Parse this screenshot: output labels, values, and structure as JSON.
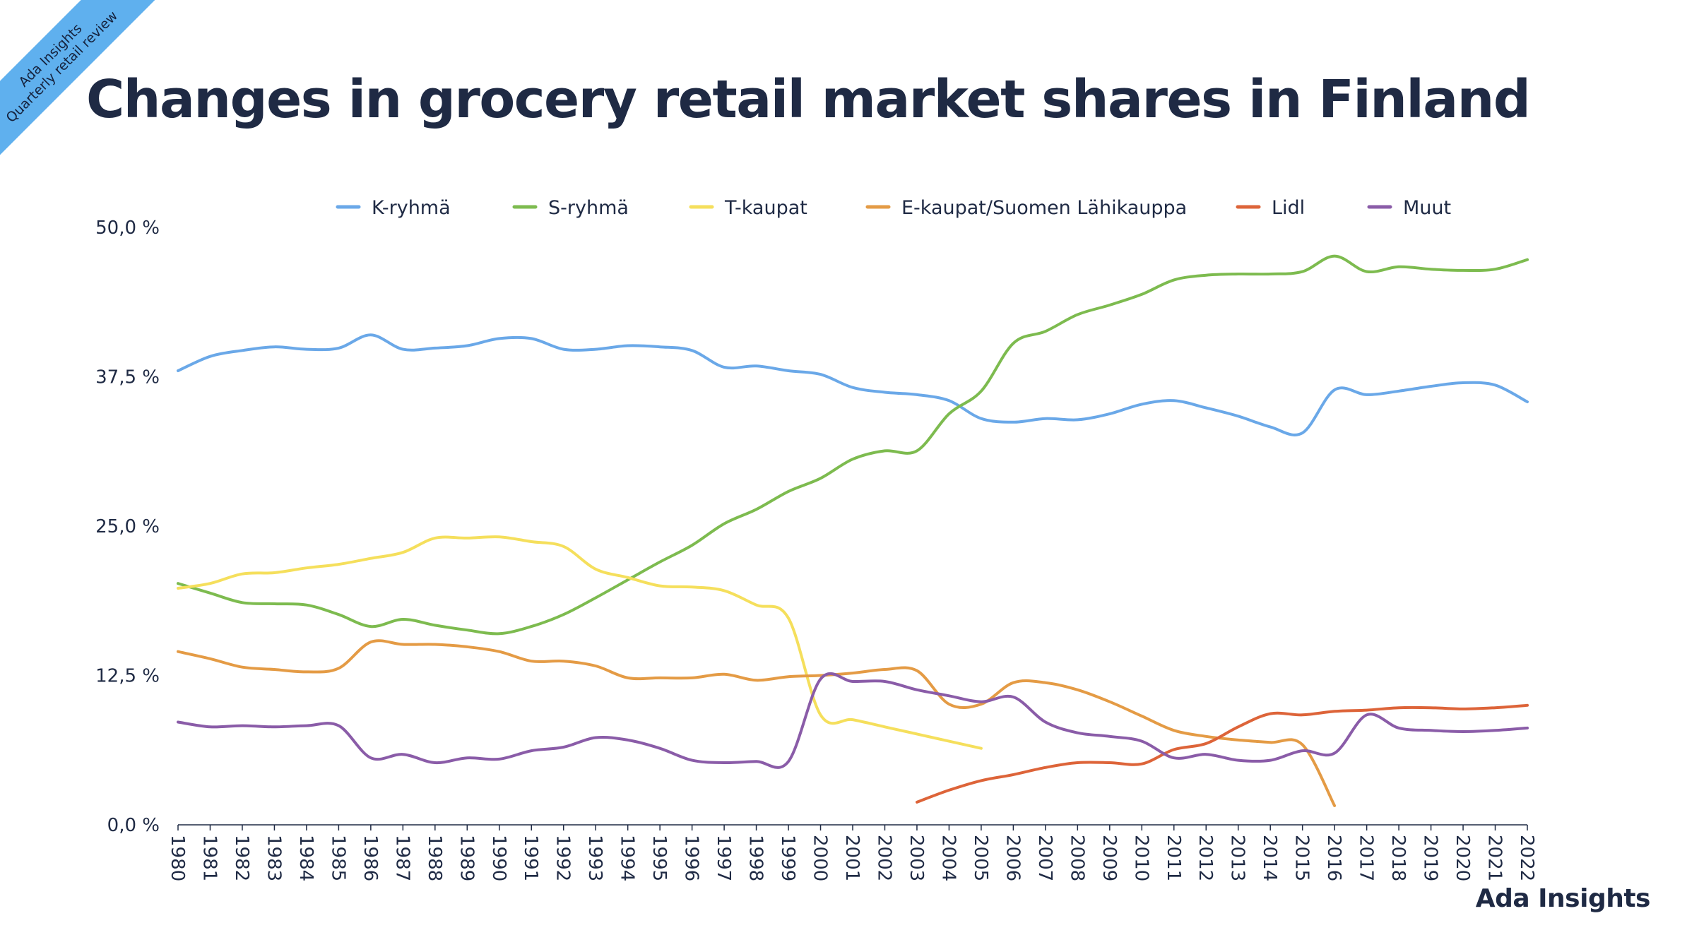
{
  "badge": {
    "line1": "Ada Insights",
    "line2": "Quarterly retail review"
  },
  "brand": "Ada Insights",
  "colors": {
    "background": "#ffffff",
    "title": "#1f2a44",
    "ribbon": "#5fb0ee"
  },
  "chart_data": {
    "type": "line",
    "title": "Changes in grocery retail market shares in Finland",
    "xlabel": "",
    "ylabel": "",
    "ylim": [
      0,
      50
    ],
    "y_ticks": [
      0,
      12.5,
      25,
      37.5,
      50
    ],
    "y_tick_labels": [
      "0,0 %",
      "12,5 %",
      "25,0 %",
      "37,5 %",
      "50,0 %"
    ],
    "grid": false,
    "legend_position": "top",
    "x": [
      1980,
      1981,
      1982,
      1983,
      1984,
      1985,
      1986,
      1987,
      1988,
      1989,
      1990,
      1991,
      1992,
      1993,
      1994,
      1995,
      1996,
      1997,
      1998,
      1999,
      2000,
      2001,
      2002,
      2003,
      2004,
      2005,
      2006,
      2007,
      2008,
      2009,
      2010,
      2011,
      2012,
      2013,
      2014,
      2015,
      2016,
      2017,
      2018,
      2019,
      2020,
      2021,
      2022
    ],
    "series": [
      {
        "name": "K-ryhmä",
        "color": "#6aa8e8",
        "values": [
          38.0,
          39.2,
          39.7,
          40.0,
          39.8,
          39.9,
          41.0,
          39.8,
          39.9,
          40.1,
          40.7,
          40.7,
          39.8,
          39.8,
          40.1,
          40.0,
          39.7,
          38.3,
          38.4,
          38.0,
          37.7,
          36.6,
          36.2,
          36.0,
          35.5,
          34.0,
          33.7,
          34.0,
          33.9,
          34.4,
          35.2,
          35.5,
          34.9,
          34.2,
          33.3,
          32.8,
          36.4,
          36.0,
          36.3,
          36.7,
          37.0,
          36.8,
          35.4
        ]
      },
      {
        "name": "S-ryhmä",
        "color": "#7dbb4f",
        "values": [
          20.2,
          19.4,
          18.6,
          18.5,
          18.4,
          17.6,
          16.6,
          17.2,
          16.7,
          16.3,
          16.0,
          16.6,
          17.6,
          19.0,
          20.5,
          22.0,
          23.4,
          25.2,
          26.4,
          27.9,
          29.0,
          30.6,
          31.3,
          31.3,
          34.4,
          36.3,
          40.3,
          41.3,
          42.7,
          43.5,
          44.4,
          45.6,
          46.0,
          46.1,
          46.1,
          46.3,
          47.6,
          46.3,
          46.7,
          46.5,
          46.4,
          46.5,
          47.3
        ]
      },
      {
        "name": "T-kaupat",
        "color": "#f5df5c",
        "values": [
          19.8,
          20.2,
          21.0,
          21.1,
          21.5,
          21.8,
          22.3,
          22.8,
          24.0,
          24.0,
          24.1,
          23.7,
          23.3,
          21.4,
          20.7,
          20.0,
          19.9,
          19.6,
          18.4,
          17.3,
          9.2,
          8.8,
          8.2,
          7.6,
          7.0,
          6.4,
          null,
          null,
          null,
          null,
          null,
          null,
          null,
          null,
          null,
          null,
          null,
          null,
          null,
          null,
          null,
          null,
          null
        ]
      },
      {
        "name": "E-kaupat/Suomen Lähikauppa",
        "color": "#e49b45",
        "values": [
          14.5,
          13.9,
          13.2,
          13.0,
          12.8,
          13.1,
          15.3,
          15.1,
          15.1,
          14.9,
          14.5,
          13.7,
          13.7,
          13.3,
          12.3,
          12.3,
          12.3,
          12.6,
          12.1,
          12.4,
          12.5,
          12.7,
          13.0,
          12.9,
          10.1,
          10.1,
          11.9,
          11.9,
          11.3,
          10.3,
          9.1,
          7.9,
          7.4,
          7.1,
          6.9,
          6.7,
          1.6,
          null,
          null,
          null,
          null,
          null,
          null
        ]
      },
      {
        "name": "Lidl",
        "color": "#dd6439",
        "values": [
          null,
          null,
          null,
          null,
          null,
          null,
          null,
          null,
          null,
          null,
          null,
          null,
          null,
          null,
          null,
          null,
          null,
          null,
          null,
          null,
          null,
          null,
          null,
          1.9,
          2.9,
          3.7,
          4.2,
          4.8,
          5.2,
          5.2,
          5.1,
          6.3,
          6.8,
          8.2,
          9.3,
          9.2,
          9.5,
          9.6,
          9.8,
          9.8,
          9.7,
          9.8,
          10.0
        ]
      },
      {
        "name": "Muut",
        "color": "#8a5ca8",
        "values": [
          8.6,
          8.2,
          8.3,
          8.2,
          8.3,
          8.3,
          5.6,
          5.9,
          5.2,
          5.6,
          5.5,
          6.2,
          6.5,
          7.3,
          7.1,
          6.4,
          5.4,
          5.2,
          5.3,
          5.3,
          12.2,
          12.0,
          12.0,
          11.3,
          10.8,
          10.3,
          10.7,
          8.6,
          7.7,
          7.4,
          7.0,
          5.6,
          5.9,
          5.4,
          5.4,
          6.2,
          6.0,
          9.2,
          8.1,
          7.9,
          7.8,
          7.9,
          8.1
        ]
      }
    ]
  }
}
